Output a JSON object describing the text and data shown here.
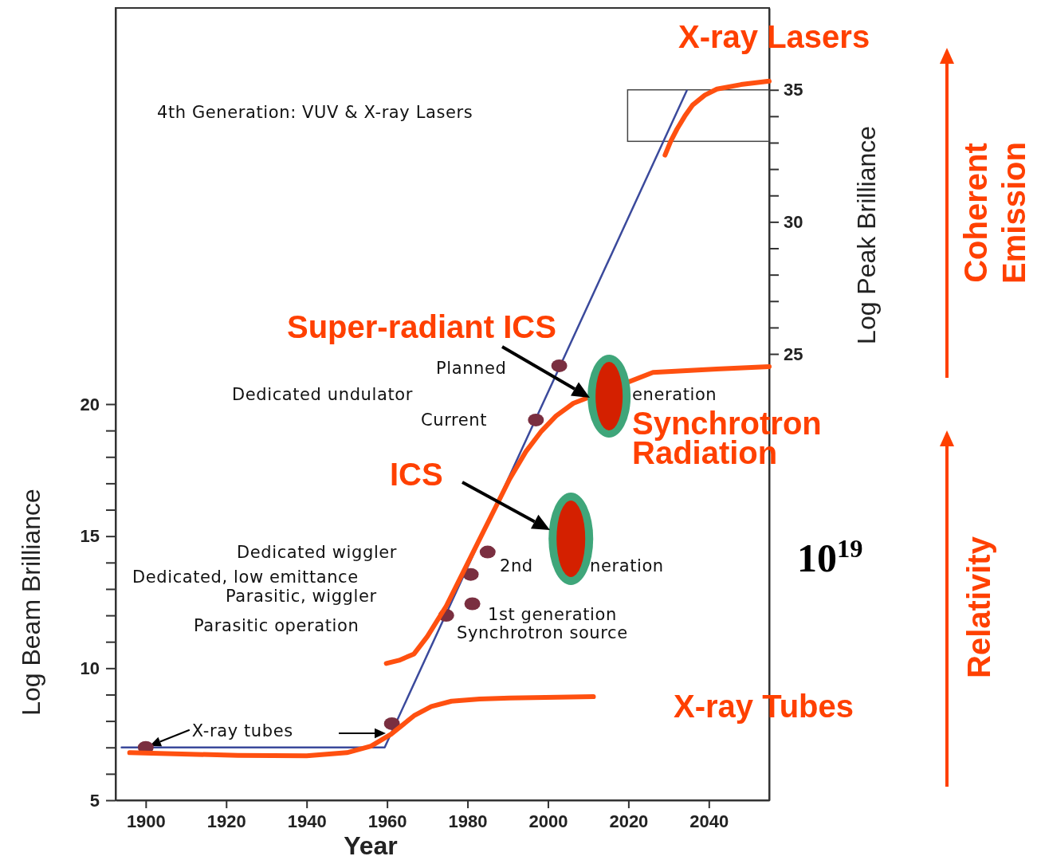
{
  "chart_data": {
    "type": "line",
    "xlabel": "Year",
    "ylabel": "Log Beam Brilliance",
    "y2label": "Log Peak Brilliance",
    "xlim": [
      1892.5,
      2055
    ],
    "ylim": [
      5,
      35
    ],
    "y2lim": [
      8.1,
      38.1
    ],
    "xticks": [
      1900,
      1920,
      1940,
      1960,
      1980,
      2000,
      2020,
      2040
    ],
    "yticks": [
      5,
      {
        "value": 6,
        "label": null
      },
      {
        "value": 7,
        "label": null
      },
      {
        "value": 8,
        "label": null
      },
      {
        "value": 9,
        "label": null
      },
      10,
      {
        "value": 11,
        "label": null
      },
      {
        "value": 12,
        "label": null
      },
      {
        "value": 13,
        "label": null
      },
      {
        "value": 14,
        "label": null
      },
      15,
      {
        "value": 16,
        "label": null
      },
      {
        "value": 17,
        "label": null
      },
      {
        "value": 18,
        "label": null
      },
      {
        "value": 19,
        "label": null
      },
      20
    ],
    "y2ticks": [
      25,
      {
        "value": 26,
        "label": null
      },
      {
        "value": 27,
        "label": null
      },
      {
        "value": 28,
        "label": null
      },
      {
        "value": 29,
        "label": null
      },
      30,
      {
        "value": 31,
        "label": null
      },
      {
        "value": 32,
        "label": null
      },
      {
        "value": 33,
        "label": null
      },
      {
        "value": 34,
        "label": null
      },
      35
    ],
    "series": [
      {
        "color": "#3b4a9c",
        "x": [
          1894,
          1959.4,
          2034.5
        ],
        "values": [
          7,
          7,
          31.87
        ]
      },
      {
        "type": "scatter",
        "color": "#7a2f40",
        "marker": "circle",
        "x": [
          1900,
          1961.2,
          1974.7,
          1981.2,
          1980.8,
          1985,
          1997,
          2002.8
        ],
        "values": [
          7,
          7.9,
          12,
          12.44,
          13.55,
          14.4,
          19.4,
          21.45
        ]
      },
      {
        "color": "#ff5010",
        "x": [
          1896,
          1923,
          1940,
          1950,
          1956,
          1961,
          1966.7,
          1971,
          1976,
          1983,
          1990.5,
          2011.3
        ],
        "values": [
          6.8,
          6.7,
          6.68,
          6.8,
          7.05,
          7.5,
          8.2,
          8.55,
          8.75,
          8.83,
          8.87,
          8.92
        ]
      },
      {
        "color": "#ff5010",
        "x": [
          1959.8,
          1963,
          1966.7,
          1970,
          1974.7,
          1982.6,
          1990.5,
          1994.5,
          1998.4,
          2002,
          2006.3,
          2026.1,
          2041.9,
          2055
        ],
        "values": [
          10.18,
          10.3,
          10.54,
          11.2,
          12.35,
          14.76,
          17.17,
          18.2,
          18.98,
          19.55,
          20.03,
          21.2,
          21.33,
          21.42
        ]
      },
      {
        "color": "#ff5010",
        "x": [
          2029.1,
          2030.5,
          2032.1,
          2034,
          2036,
          2039,
          2042,
          2048,
          2055
        ],
        "values": [
          29.43,
          29.95,
          30.42,
          30.9,
          31.33,
          31.7,
          31.93,
          32.1,
          32.23
        ]
      }
    ],
    "annotations": [
      "4th Generation: VUV & X-ray Lasers",
      "Planned",
      "Dedicated undulator",
      "eneration",
      "Current",
      "Dedicated wiggler",
      "2nd",
      "neration",
      "Dedicated, low emittance",
      "Parasitic, wiggler",
      "Parasitic operation",
      "1st generation",
      "Synchrotron source",
      {
        "text": "X-ray tubes",
        "x": 1900,
        "y": 7
      },
      "Super-radiant ICS",
      "ICS",
      "Synchrotron",
      "Radiation",
      "X-ray Lasers",
      "X-ray Tubes",
      "10$^{19}$",
      "Coherent Emission",
      "Relativity"
    ]
  }
}
